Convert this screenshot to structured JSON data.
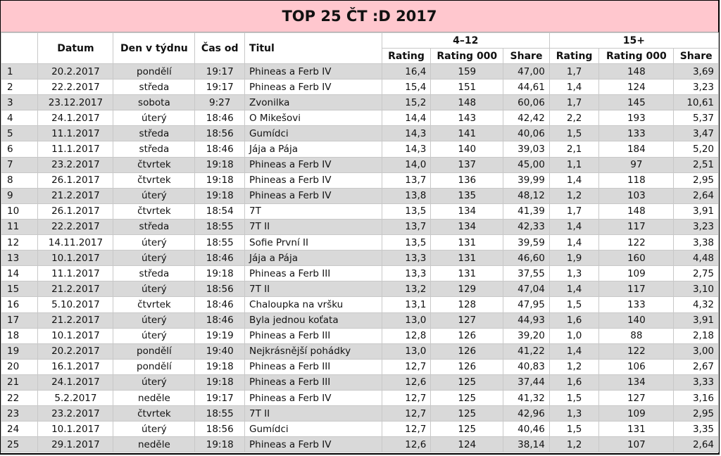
{
  "title": "TOP 25 ČT :D 2017",
  "headers": {
    "datum": "Datum",
    "den": "Den v týdnu",
    "cas": "Čas od",
    "titul": "Titul",
    "group1": "4–12",
    "group2": "15+",
    "rating": "Rating",
    "rating000": "Rating 000",
    "share": "Share"
  },
  "rows": [
    [
      "1",
      "20.2.2017",
      "pondělí",
      "19:17",
      "Phineas a Ferb IV",
      "16,4",
      "159",
      "47,00",
      "1,7",
      "148",
      "3,69"
    ],
    [
      "2",
      "22.2.2017",
      "středa",
      "19:17",
      "Phineas a Ferb IV",
      "15,4",
      "151",
      "44,61",
      "1,4",
      "124",
      "3,23"
    ],
    [
      "3",
      "23.12.2017",
      "sobota",
      "9:27",
      "Zvonilka",
      "15,2",
      "148",
      "60,06",
      "1,7",
      "145",
      "10,61"
    ],
    [
      "4",
      "24.1.2017",
      "úterý",
      "18:46",
      "O Mikešovi",
      "14,4",
      "143",
      "42,42",
      "2,2",
      "193",
      "5,37"
    ],
    [
      "5",
      "11.1.2017",
      "středa",
      "18:56",
      "Gumídci",
      "14,3",
      "141",
      "40,06",
      "1,5",
      "133",
      "3,47"
    ],
    [
      "6",
      "11.1.2017",
      "středa",
      "18:46",
      "Jája a Pája",
      "14,3",
      "140",
      "39,03",
      "2,1",
      "184",
      "5,20"
    ],
    [
      "7",
      "23.2.2017",
      "čtvrtek",
      "19:18",
      "Phineas a Ferb IV",
      "14,0",
      "137",
      "45,00",
      "1,1",
      "97",
      "2,51"
    ],
    [
      "8",
      "26.1.2017",
      "čtvrtek",
      "19:18",
      "Phineas a Ferb IV",
      "13,7",
      "136",
      "39,99",
      "1,4",
      "118",
      "2,95"
    ],
    [
      "9",
      "21.2.2017",
      "úterý",
      "19:18",
      "Phineas a Ferb IV",
      "13,8",
      "135",
      "48,12",
      "1,2",
      "103",
      "2,64"
    ],
    [
      "10",
      "26.1.2017",
      "čtvrtek",
      "18:54",
      "7T",
      "13,5",
      "134",
      "41,39",
      "1,7",
      "148",
      "3,91"
    ],
    [
      "11",
      "22.2.2017",
      "středa",
      "18:55",
      "7T II",
      "13,7",
      "134",
      "42,33",
      "1,4",
      "117",
      "3,23"
    ],
    [
      "12",
      "14.11.2017",
      "úterý",
      "18:55",
      "Sofie První II",
      "13,5",
      "131",
      "39,59",
      "1,4",
      "122",
      "3,38"
    ],
    [
      "13",
      "10.1.2017",
      "úterý",
      "18:46",
      "Jája a Pája",
      "13,3",
      "131",
      "46,60",
      "1,9",
      "160",
      "4,48"
    ],
    [
      "14",
      "11.1.2017",
      "středa",
      "19:18",
      "Phineas a Ferb III",
      "13,3",
      "131",
      "37,55",
      "1,3",
      "109",
      "2,75"
    ],
    [
      "15",
      "21.2.2017",
      "úterý",
      "18:56",
      "7T II",
      "13,2",
      "129",
      "47,04",
      "1,4",
      "117",
      "3,10"
    ],
    [
      "16",
      "5.10.2017",
      "čtvrtek",
      "18:46",
      "Chaloupka na vršku",
      "13,1",
      "128",
      "47,95",
      "1,5",
      "133",
      "4,32"
    ],
    [
      "17",
      "21.2.2017",
      "úterý",
      "18:46",
      "Byla jednou koťata",
      "13,0",
      "127",
      "44,93",
      "1,6",
      "140",
      "3,91"
    ],
    [
      "18",
      "10.1.2017",
      "úterý",
      "19:19",
      "Phineas a Ferb III",
      "12,8",
      "126",
      "39,20",
      "1,0",
      "88",
      "2,18"
    ],
    [
      "19",
      "20.2.2017",
      "pondělí",
      "19:40",
      "Nejkrásnější pohádky",
      "13,0",
      "126",
      "41,22",
      "1,4",
      "122",
      "3,00"
    ],
    [
      "20",
      "16.1.2017",
      "pondělí",
      "19:18",
      "Phineas a Ferb III",
      "12,7",
      "126",
      "40,83",
      "1,2",
      "106",
      "2,67"
    ],
    [
      "21",
      "24.1.2017",
      "úterý",
      "19:18",
      "Phineas a Ferb III",
      "12,6",
      "125",
      "37,44",
      "1,6",
      "134",
      "3,33"
    ],
    [
      "22",
      "5.2.2017",
      "neděle",
      "19:17",
      "Phineas a Ferb IV",
      "12,7",
      "125",
      "41,32",
      "1,5",
      "127",
      "3,16"
    ],
    [
      "23",
      "23.2.2017",
      "čtvrtek",
      "18:55",
      "7T II",
      "12,7",
      "125",
      "42,96",
      "1,3",
      "109",
      "2,95"
    ],
    [
      "24",
      "10.1.2017",
      "úterý",
      "18:56",
      "Gumídci",
      "12,7",
      "125",
      "40,46",
      "1,5",
      "131",
      "3,35"
    ],
    [
      "25",
      "29.1.2017",
      "neděle",
      "19:18",
      "Phineas a Ferb IV",
      "12,6",
      "124",
      "38,14",
      "1,2",
      "107",
      "2,64"
    ]
  ]
}
